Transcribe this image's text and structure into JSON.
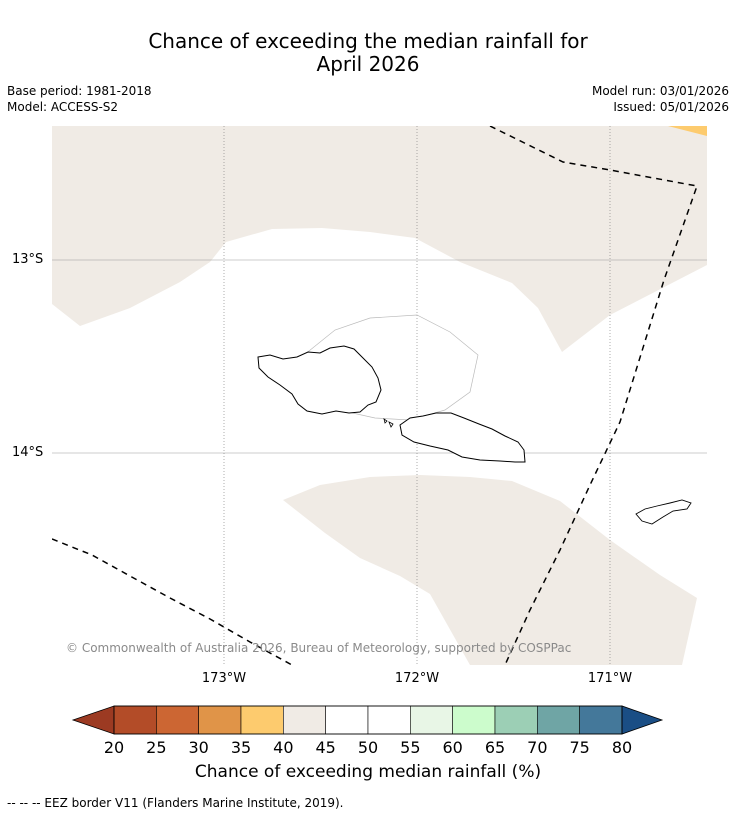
{
  "title_line1": "Chance of exceeding the median rainfall for",
  "title_line2": "April 2026",
  "base_period": "Base period: 1981-2018",
  "model": "Model: ACCESS-S2",
  "model_run": "Model run: 03/01/2026",
  "issued": "Issued: 05/01/2026",
  "lat_labels": [
    "13°S",
    "14°S"
  ],
  "lon_labels": [
    "173°W",
    "172°W",
    "171°W"
  ],
  "copyright": "© Commonwealth of Australia 2026, Bureau of Meteorology, supported by COSPPac",
  "colorbar": {
    "title": "Chance of exceeding median rainfall (%)",
    "ticks": [
      "20",
      "25",
      "30",
      "35",
      "40",
      "45",
      "50",
      "55",
      "60",
      "65",
      "70",
      "75",
      "80"
    ],
    "colors": [
      "#9c3a22",
      "#b34c28",
      "#cc6633",
      "#e09448",
      "#fdcb6e",
      "#f0ebe5",
      "#ffffff",
      "#ffffff",
      "#e8f6e6",
      "#ccfccc",
      "#9ccfb5",
      "#6fa5a5",
      "#44789a",
      "#1a4e85"
    ]
  },
  "footnote": "--  --  -- EEZ border V11 (Flanders Marine Institute, 2019)."
}
